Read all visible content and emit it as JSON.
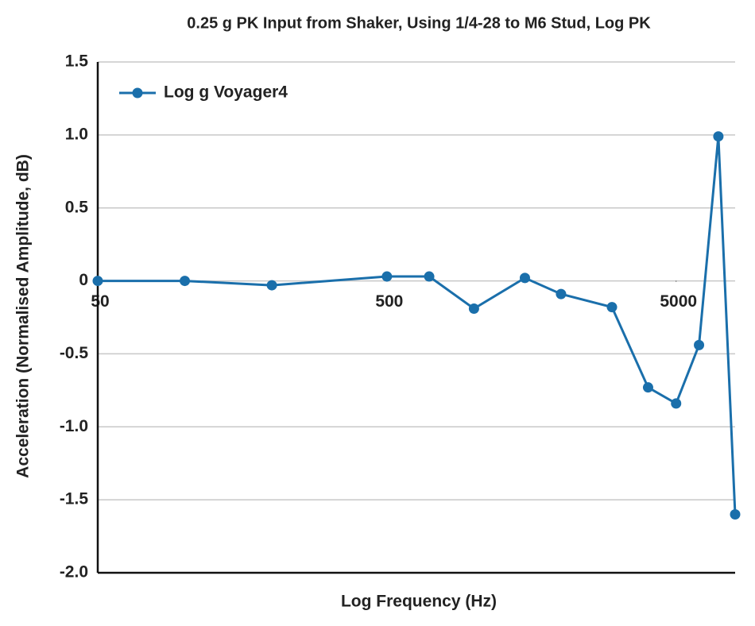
{
  "chart_data": {
    "type": "line",
    "title": "0.25 g PK Input from Shaker, Using 1/4-28 to M6 Stud, Log PK",
    "xlabel": "Log Frequency (Hz)",
    "ylabel": "Acceleration (Normalised Amplitude, dB)",
    "x": [
      50,
      100,
      200,
      500,
      700,
      1000,
      1500,
      2000,
      3000,
      4000,
      5000,
      6000,
      7000,
      8000
    ],
    "series": [
      {
        "name": "Log g Voyager4",
        "color": "#1a6fab",
        "values": [
          0,
          0.0,
          -0.03,
          0.03,
          0.03,
          -0.19,
          0.02,
          -0.09,
          -0.18,
          -0.73,
          -0.84,
          -0.44,
          0.99,
          -1.6
        ]
      }
    ],
    "xscale": "log",
    "xlim": [
      50,
      8000
    ],
    "xticks": [
      50,
      500,
      5000
    ],
    "ylim": [
      -2.0,
      1.5
    ],
    "yticks": [
      {
        "value": -2.0,
        "label": "-2.0"
      },
      -1.5,
      {
        "value": -1.0,
        "label": "-1.0"
      },
      -0.5,
      0,
      0.5,
      {
        "value": 1.0,
        "label": "1.0"
      },
      1.5
    ],
    "grid": true,
    "legend": "upper left"
  }
}
